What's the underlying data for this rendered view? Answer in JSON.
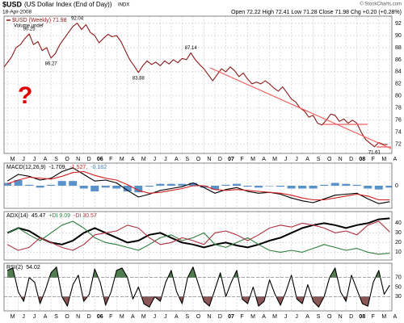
{
  "header": {
    "symbol": "$USD",
    "name": "(US Dollar Index (End of Day))",
    "exchange": "INDX",
    "date": "18-Apr-2008",
    "quote": "Open 72.22  High 72.41  Low 71.28  Close 71.98  Chg +0.20 (+0.28%)",
    "credit": "© StockCharts.com"
  },
  "chart_data": [
    {
      "type": "line",
      "volume_label": "Volume undef",
      "note": "?",
      "xlim": [
        -0.3,
        35.2
      ],
      "xticks": [
        {
          "value": 0,
          "label": "M"
        },
        {
          "value": 1,
          "label": "J"
        },
        {
          "value": 2,
          "label": "J"
        },
        {
          "value": 3,
          "label": "A"
        },
        {
          "value": 4,
          "label": "S"
        },
        {
          "value": 5,
          "label": "O"
        },
        {
          "value": 6,
          "label": "N"
        },
        {
          "value": 7,
          "label": "D"
        },
        {
          "value": 8,
          "label": "06"
        },
        {
          "value": 9,
          "label": "F"
        },
        {
          "value": 10,
          "label": "M"
        },
        {
          "value": 11,
          "label": "A"
        },
        {
          "value": 12,
          "label": "M"
        },
        {
          "value": 13,
          "label": "J"
        },
        {
          "value": 14,
          "label": "J"
        },
        {
          "value": 15,
          "label": "A"
        },
        {
          "value": 16,
          "label": "S"
        },
        {
          "value": 17,
          "label": "O"
        },
        {
          "value": 18,
          "label": "N"
        },
        {
          "value": 19,
          "label": "D"
        },
        {
          "value": 20,
          "label": "07"
        },
        {
          "value": 21,
          "label": "F"
        },
        {
          "value": 22,
          "label": "M"
        },
        {
          "value": 23,
          "label": "A"
        },
        {
          "value": 24,
          "label": "M"
        },
        {
          "value": 25,
          "label": "J"
        },
        {
          "value": 26,
          "label": "J"
        },
        {
          "value": 27,
          "label": "A"
        },
        {
          "value": 28,
          "label": "S"
        },
        {
          "value": 29,
          "label": "O"
        },
        {
          "value": 30,
          "label": "N"
        },
        {
          "value": 31,
          "label": "D"
        },
        {
          "value": 32,
          "label": "08"
        },
        {
          "value": 33,
          "label": "F"
        },
        {
          "value": 34,
          "label": "M"
        },
        {
          "value": 35,
          "label": "A"
        }
      ],
      "ylim": [
        70.5,
        93.2
      ],
      "yticks": [
        72,
        74,
        76,
        78,
        80,
        82,
        84,
        86,
        88,
        90,
        92
      ],
      "grid": true,
      "x": [
        -0.3,
        0,
        0.4,
        0.8,
        1.2,
        1.6,
        2.0,
        2.4,
        2.8,
        3.2,
        3.6,
        4.0,
        4.4,
        4.8,
        5.2,
        5.6,
        6.0,
        6.4,
        6.8,
        7.2,
        7.6,
        8.0,
        8.4,
        8.8,
        9.2,
        9.6,
        10.0,
        10.4,
        10.8,
        11.2,
        11.6,
        12.0,
        12.4,
        12.8,
        13.2,
        13.6,
        14.0,
        14.4,
        14.8,
        15.2,
        15.6,
        16.0,
        16.4,
        16.8,
        17.2,
        17.6,
        18.0,
        18.4,
        18.8,
        19.2,
        19.6,
        20.0,
        20.4,
        20.8,
        21.2,
        21.6,
        22.0,
        22.4,
        22.8,
        23.2,
        23.6,
        24.0,
        24.4,
        24.8,
        25.2,
        25.6,
        26.0,
        26.4,
        26.8,
        27.2,
        27.6,
        28.0,
        28.4,
        28.8,
        29.2,
        29.6,
        30.0,
        30.4,
        30.8,
        31.2,
        31.6,
        32.0,
        32.4,
        32.8,
        33.2,
        33.6,
        34.0,
        34.4,
        34.8
      ],
      "series": [
        {
          "name": "$USD (Weekly) 71.98",
          "color": "#8b1a1a",
          "values": [
            84.8,
            85.5,
            86.5,
            88.0,
            88.5,
            89.5,
            90.25,
            88.5,
            89.0,
            87.5,
            88.0,
            86.27,
            87.0,
            88.5,
            89.5,
            90.5,
            91.5,
            92.04,
            91.0,
            91.8,
            90.5,
            90.0,
            88.8,
            89.5,
            90.2,
            89.8,
            90.0,
            89.0,
            87.5,
            86.0,
            85.0,
            83.88,
            85.0,
            85.8,
            85.2,
            85.6,
            85.0,
            85.8,
            85.3,
            86.0,
            85.5,
            86.2,
            86.0,
            87.14,
            86.0,
            85.2,
            84.5,
            83.5,
            82.5,
            83.5,
            84.5,
            84.0,
            84.8,
            84.2,
            83.2,
            83.8,
            82.8,
            82.0,
            82.3,
            82.0,
            82.5,
            82.0,
            81.3,
            80.8,
            81.5,
            80.5,
            79.5,
            79.0,
            78.0,
            77.5,
            76.5,
            76.8,
            75.5,
            75.2,
            76.0,
            77.0,
            76.8,
            75.8,
            76.2,
            75.5,
            76.0,
            75.5,
            74.0,
            72.8,
            72.2,
            71.61,
            72.3,
            72.0,
            71.98
          ]
        }
      ],
      "annotations": [
        {
          "text": "90.25",
          "x": 2.0,
          "y": 90.25,
          "position": "above"
        },
        {
          "text": "86.27",
          "x": 4.0,
          "y": 86.27,
          "position": "below"
        },
        {
          "text": "92.04",
          "x": 6.4,
          "y": 92.04,
          "position": "above"
        },
        {
          "text": "83.88",
          "x": 12.0,
          "y": 83.88,
          "position": "below"
        },
        {
          "text": "87.14",
          "x": 16.8,
          "y": 87.14,
          "position": "above"
        },
        {
          "text": "71.61",
          "x": 33.6,
          "y": 71.61,
          "position": "below"
        }
      ]
    },
    {
      "type": "line",
      "title": "MACD(12,26,9)",
      "ylim": [
        -2.4,
        2.4
      ],
      "yticks": [
        0
      ],
      "grid": true,
      "x": [
        0,
        1,
        2,
        3,
        4,
        5,
        6,
        7,
        8,
        9,
        10,
        11,
        12,
        13,
        14,
        15,
        16,
        17,
        18,
        19,
        20,
        21,
        22,
        23,
        24,
        25,
        26,
        27,
        28,
        29,
        30,
        31,
        32,
        33,
        34,
        35
      ],
      "series": [
        {
          "name": "-0.182",
          "color": "#3d7fc1",
          "type": "bar",
          "values": [
            0.3,
            0.6,
            0.1,
            -0.2,
            0.1,
            0.5,
            0.5,
            -0.3,
            -0.6,
            -0.2,
            -0.3,
            -0.6,
            -0.7,
            -0.1,
            0.2,
            0.2,
            0.2,
            0.3,
            -0.2,
            -0.4,
            0.1,
            0.2,
            -0.1,
            -0.2,
            0.0,
            -0.1,
            -0.3,
            -0.3,
            -0.3,
            0.1,
            0.3,
            0.2,
            0.1,
            -0.3,
            -0.4,
            -0.2
          ]
        },
        {
          "name": "-1.709,",
          "color": "#000000",
          "values": [
            0.5,
            1.2,
            1.0,
            0.6,
            0.8,
            1.5,
            1.9,
            1.2,
            0.5,
            0.6,
            0.3,
            -0.5,
            -1.2,
            -0.9,
            -0.5,
            -0.3,
            -0.1,
            0.3,
            -0.2,
            -0.8,
            -0.4,
            -0.2,
            -0.6,
            -0.8,
            -0.7,
            -0.9,
            -1.3,
            -1.6,
            -1.8,
            -1.4,
            -1.0,
            -0.9,
            -0.8,
            -1.4,
            -1.9,
            -1.7
          ]
        },
        {
          "name": "-1.527,",
          "color": "#d02020",
          "values": [
            0.2,
            0.6,
            0.9,
            0.8,
            0.7,
            1.0,
            1.4,
            1.5,
            1.1,
            0.8,
            0.6,
            0.1,
            -0.5,
            -0.8,
            -0.7,
            -0.5,
            -0.3,
            0.0,
            0.0,
            -0.4,
            -0.5,
            -0.4,
            -0.5,
            -0.6,
            -0.7,
            -0.8,
            -1.0,
            -1.3,
            -1.5,
            -1.5,
            -1.3,
            -1.1,
            -0.9,
            -1.1,
            -1.5,
            -1.5
          ]
        }
      ]
    },
    {
      "type": "line",
      "title": "ADX(14)",
      "ylim": [
        2,
        52
      ],
      "yticks": [
        10,
        20,
        30,
        40
      ],
      "grid": true,
      "x": [
        0,
        1,
        2,
        3,
        4,
        5,
        6,
        7,
        8,
        9,
        10,
        11,
        12,
        13,
        14,
        15,
        16,
        17,
        18,
        19,
        20,
        21,
        22,
        23,
        24,
        25,
        26,
        27,
        28,
        29,
        30,
        31,
        32,
        33,
        34,
        35
      ],
      "series": [
        {
          "name": "45.47",
          "color": "#000000",
          "width": 2,
          "values": [
            30,
            35,
            32,
            25,
            20,
            18,
            22,
            30,
            35,
            30,
            25,
            20,
            22,
            28,
            30,
            25,
            20,
            18,
            15,
            18,
            20,
            17,
            15,
            18,
            22,
            25,
            30,
            35,
            38,
            40,
            38,
            35,
            38,
            40,
            44,
            45
          ]
        },
        {
          "name": "+DI 9.09",
          "color": "#2e7d3e",
          "values": [
            30,
            35,
            28,
            22,
            30,
            38,
            42,
            35,
            25,
            20,
            18,
            15,
            12,
            18,
            25,
            28,
            22,
            25,
            30,
            18,
            15,
            20,
            25,
            18,
            12,
            10,
            12,
            10,
            14,
            18,
            15,
            12,
            14,
            10,
            8,
            9
          ]
        },
        {
          "name": "-DI 30.57",
          "color": "#b03040",
          "values": [
            18,
            12,
            15,
            25,
            20,
            15,
            12,
            18,
            28,
            30,
            32,
            38,
            35,
            25,
            18,
            20,
            25,
            22,
            18,
            30,
            32,
            28,
            22,
            28,
            35,
            38,
            36,
            40,
            38,
            35,
            30,
            32,
            28,
            38,
            42,
            31
          ]
        }
      ]
    },
    {
      "type": "rsi",
      "title": "RSI(2)",
      "ylim": [
        0,
        100
      ],
      "yticks": [
        30,
        50,
        70
      ],
      "grid": true,
      "overbought": 70,
      "oversold": 30,
      "overbought_color": "#4f7d4f",
      "oversold_color": "#8a5656",
      "x": [
        0,
        0.5,
        1,
        1.5,
        2,
        2.5,
        3,
        3.5,
        4,
        4.5,
        5,
        5.5,
        6,
        6.5,
        7,
        7.5,
        8,
        8.5,
        9,
        9.5,
        10,
        10.5,
        11,
        11.5,
        12,
        12.5,
        13,
        13.5,
        14,
        14.5,
        15,
        15.5,
        16,
        16.5,
        17,
        17.5,
        18,
        18.5,
        19,
        19.5,
        20,
        20.5,
        21,
        21.5,
        22,
        22.5,
        23,
        23.5,
        24,
        24.5,
        25,
        25.5,
        26,
        26.5,
        27,
        27.5,
        28,
        28.5,
        29,
        29.5,
        30,
        30.5,
        31,
        31.5,
        32,
        32.5,
        33,
        33.5,
        34,
        34.5,
        35
      ],
      "series": [
        {
          "name": "54.02",
          "color": "#000000",
          "values": [
            85,
            90,
            40,
            20,
            70,
            60,
            15,
            45,
            80,
            92,
            30,
            10,
            55,
            75,
            20,
            35,
            88,
            60,
            12,
            40,
            85,
            90,
            70,
            25,
            50,
            15,
            8,
            30,
            20,
            60,
            85,
            40,
            15,
            70,
            92,
            55,
            20,
            10,
            45,
            80,
            30,
            60,
            85,
            25,
            15,
            50,
            10,
            20,
            65,
            35,
            12,
            40,
            75,
            25,
            15,
            55,
            20,
            8,
            30,
            70,
            90,
            40,
            20,
            75,
            45,
            15,
            10,
            60,
            85,
            35,
            54
          ]
        }
      ]
    }
  ]
}
